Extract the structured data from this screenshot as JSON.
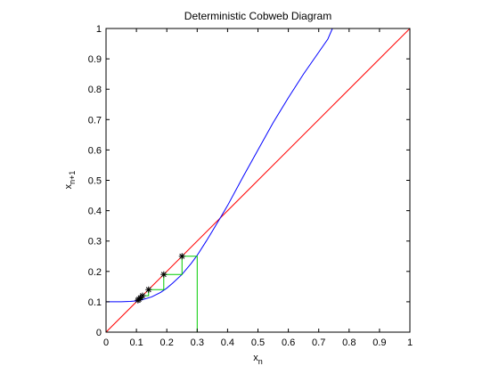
{
  "chart_data": {
    "type": "line",
    "title": "Deterministic Cobweb Diagram",
    "xlabel": {
      "base": "x",
      "sub": "n"
    },
    "ylabel": {
      "base": "x",
      "sub": "n+1"
    },
    "xlim": [
      0,
      1
    ],
    "ylim": [
      0,
      1
    ],
    "grid": false,
    "xticks": [
      "0",
      "0.1",
      "0.2",
      "0.3",
      "0.4",
      "0.5",
      "0.6",
      "0.7",
      "0.8",
      "0.9",
      "1"
    ],
    "yticks": [
      "0",
      "0.1",
      "0.2",
      "0.3",
      "0.4",
      "0.5",
      "0.6",
      "0.7",
      "0.8",
      "0.9",
      "1"
    ],
    "map_curve": {
      "color": "#0000ff",
      "x": [
        0,
        0.05,
        0.08,
        0.1,
        0.12,
        0.15,
        0.18,
        0.2,
        0.22,
        0.25,
        0.28,
        0.3,
        0.33,
        0.35,
        0.38,
        0.4,
        0.45,
        0.5,
        0.55,
        0.6,
        0.65,
        0.7,
        0.73,
        0.745
      ],
      "y": [
        0.1,
        0.1,
        0.101,
        0.103,
        0.107,
        0.116,
        0.131,
        0.145,
        0.162,
        0.19,
        0.226,
        0.253,
        0.3,
        0.333,
        0.383,
        0.417,
        0.51,
        0.6,
        0.69,
        0.772,
        0.85,
        0.922,
        0.965,
        1.0
      ]
    },
    "identity_line": {
      "color": "#ff0000",
      "x": [
        0,
        1
      ],
      "y": [
        0,
        1
      ]
    },
    "cobweb": {
      "color": "#00cc00",
      "x": [
        0.3,
        0.3,
        0.25,
        0.25,
        0.19,
        0.19,
        0.14,
        0.14,
        0.12,
        0.12,
        0.11,
        0.11,
        0.105
      ],
      "y": [
        0,
        0.25,
        0.25,
        0.19,
        0.19,
        0.14,
        0.14,
        0.12,
        0.12,
        0.11,
        0.11,
        0.105,
        0.105
      ]
    },
    "markers": {
      "color": "#000000",
      "x": [
        0.25,
        0.19,
        0.14,
        0.12,
        0.113,
        0.108,
        0.105
      ],
      "y": [
        0.25,
        0.19,
        0.14,
        0.12,
        0.113,
        0.108,
        0.105
      ]
    }
  }
}
